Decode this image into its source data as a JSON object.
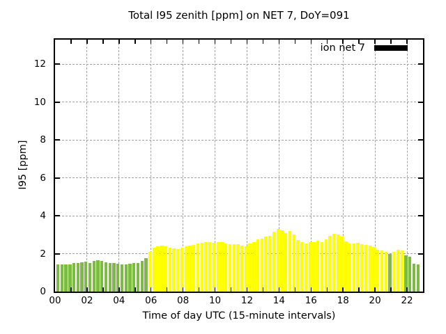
{
  "title": "Total I95 zenith [ppm] on NET 7, DoY=091",
  "legend": {
    "label": "ion net 7",
    "swatch_color": "#000000"
  },
  "chart_data": {
    "type": "bar",
    "title": "Total I95 zenith [ppm] on NET 7, DoY=091",
    "xlabel": "Time of day UTC (15-minute intervals)",
    "ylabel": "I95 [ppm]",
    "legend_position": "top-right-inside",
    "grid": true,
    "xlim_hours": [
      0,
      23
    ],
    "ylim": [
      0,
      13.3
    ],
    "x_tick_labels": [
      "00",
      "02",
      "04",
      "06",
      "08",
      "10",
      "12",
      "14",
      "16",
      "18",
      "20",
      "22"
    ],
    "y_tick_values": [
      0,
      2,
      4,
      6,
      8,
      10,
      12
    ],
    "y_tick_labels": [
      "0",
      "2",
      "4",
      "6",
      "8",
      "10",
      "12"
    ],
    "interval_minutes": 15,
    "bar_colors": {
      "green": "#7dbb45",
      "yellow": "#ffff00"
    },
    "series": [
      {
        "name": "ion net 7",
        "times": [
          "00:00",
          "00:15",
          "00:30",
          "00:45",
          "01:00",
          "01:15",
          "01:30",
          "01:45",
          "02:00",
          "02:15",
          "02:30",
          "02:45",
          "03:00",
          "03:15",
          "03:30",
          "03:45",
          "04:00",
          "04:15",
          "04:30",
          "04:45",
          "05:00",
          "05:15",
          "05:30",
          "05:45",
          "06:00",
          "06:15",
          "06:30",
          "06:45",
          "07:00",
          "07:15",
          "07:30",
          "07:45",
          "08:00",
          "08:15",
          "08:30",
          "08:45",
          "09:00",
          "09:15",
          "09:30",
          "09:45",
          "10:00",
          "10:15",
          "10:30",
          "10:45",
          "11:00",
          "11:15",
          "11:30",
          "11:45",
          "12:00",
          "12:15",
          "12:30",
          "12:45",
          "13:00",
          "13:15",
          "13:30",
          "13:45",
          "14:00",
          "14:15",
          "14:30",
          "14:45",
          "15:00",
          "15:15",
          "15:30",
          "15:45",
          "16:00",
          "16:15",
          "16:30",
          "16:45",
          "17:00",
          "17:15",
          "17:30",
          "17:45",
          "18:00",
          "18:15",
          "18:30",
          "18:45",
          "19:00",
          "19:15",
          "19:30",
          "19:45",
          "20:00",
          "20:15",
          "20:30",
          "20:45",
          "21:00",
          "21:15",
          "21:30",
          "21:45",
          "22:00",
          "22:15",
          "22:30"
        ],
        "values": [
          1.45,
          1.42,
          1.45,
          1.42,
          1.5,
          1.52,
          1.55,
          1.57,
          1.52,
          1.62,
          1.65,
          1.6,
          1.55,
          1.52,
          1.5,
          1.48,
          1.45,
          1.45,
          1.48,
          1.5,
          1.52,
          1.63,
          1.75,
          2.08,
          2.3,
          2.38,
          2.42,
          2.38,
          2.33,
          2.27,
          2.25,
          2.33,
          2.38,
          2.42,
          2.47,
          2.53,
          2.57,
          2.6,
          2.62,
          2.57,
          2.6,
          2.62,
          2.55,
          2.5,
          2.48,
          2.48,
          2.42,
          2.37,
          2.55,
          2.62,
          2.75,
          2.8,
          2.9,
          2.95,
          3.15,
          3.3,
          3.25,
          3.1,
          3.18,
          3.0,
          2.72,
          2.6,
          2.55,
          2.6,
          2.62,
          2.68,
          2.6,
          2.75,
          2.95,
          3.05,
          3.02,
          2.9,
          2.65,
          2.55,
          2.55,
          2.58,
          2.48,
          2.45,
          2.42,
          2.35,
          2.2,
          2.15,
          2.08,
          2.0,
          2.1,
          2.2,
          2.18,
          1.92,
          1.85,
          1.47,
          1.43
        ],
        "point_colors": [
          "green",
          "green",
          "green",
          "green",
          "green",
          "green",
          "green",
          "green",
          "green",
          "green",
          "green",
          "green",
          "green",
          "green",
          "green",
          "green",
          "green",
          "green",
          "green",
          "green",
          "green",
          "green",
          "green",
          "yellow",
          "yellow",
          "yellow",
          "yellow",
          "yellow",
          "yellow",
          "yellow",
          "yellow",
          "yellow",
          "yellow",
          "yellow",
          "yellow",
          "yellow",
          "yellow",
          "yellow",
          "yellow",
          "yellow",
          "yellow",
          "yellow",
          "yellow",
          "yellow",
          "yellow",
          "yellow",
          "yellow",
          "yellow",
          "yellow",
          "yellow",
          "yellow",
          "yellow",
          "yellow",
          "yellow",
          "yellow",
          "yellow",
          "yellow",
          "yellow",
          "yellow",
          "yellow",
          "yellow",
          "yellow",
          "yellow",
          "yellow",
          "yellow",
          "yellow",
          "yellow",
          "yellow",
          "yellow",
          "yellow",
          "yellow",
          "yellow",
          "yellow",
          "yellow",
          "yellow",
          "yellow",
          "yellow",
          "yellow",
          "yellow",
          "yellow",
          "yellow",
          "yellow",
          "yellow",
          "green",
          "yellow",
          "yellow",
          "yellow",
          "green",
          "green",
          "green",
          "green"
        ]
      }
    ]
  }
}
